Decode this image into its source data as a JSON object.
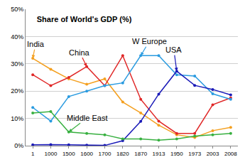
{
  "chart_data": {
    "type": "line",
    "title": "Share of World's GDP (%)",
    "categories": [
      "1",
      "1000",
      "1500",
      "1600",
      "1700",
      "1820",
      "1870",
      "1913",
      "1950",
      "1973",
      "2003",
      "2008"
    ],
    "series": [
      {
        "name": "India",
        "color": "#f4a020",
        "marker": "circle",
        "values": [
          32,
          28,
          24.5,
          22.5,
          24.5,
          16,
          12,
          7.5,
          4,
          3,
          5.5,
          6.7
        ]
      },
      {
        "name": "China",
        "color": "#e02828",
        "marker": "circle",
        "values": [
          26,
          22,
          25,
          29,
          22,
          33,
          17,
          9,
          4.5,
          4.5,
          15,
          17.5
        ]
      },
      {
        "name": "W Europe",
        "color": "#2a9be0",
        "marker": "circle",
        "values": [
          14,
          9,
          18,
          20,
          22,
          23,
          33,
          33,
          26,
          25.5,
          19,
          17
        ]
      },
      {
        "name": "USA",
        "color": "#1a1ab8",
        "marker": "circle",
        "values": [
          0.3,
          0.4,
          0.3,
          0.2,
          0.1,
          1.8,
          8.9,
          18.9,
          27.3,
          22.1,
          20.6,
          18.6
        ]
      },
      {
        "name": "Middle East",
        "color": "#38b040",
        "marker": "circle",
        "values": [
          12,
          12.5,
          5,
          4.5,
          4,
          2.5,
          2.5,
          2,
          2.5,
          3.5,
          4,
          4.5
        ]
      }
    ],
    "ylim": [
      0,
      50
    ],
    "yticks": [
      {
        "value": 0,
        "label": "0%"
      },
      {
        "value": 10,
        "label": "10%"
      },
      {
        "value": 20,
        "label": "20%"
      },
      {
        "value": 30,
        "label": "30%"
      },
      {
        "value": 40,
        "label": "40%"
      },
      {
        "value": 50,
        "label": "50%"
      }
    ],
    "grid": true
  }
}
